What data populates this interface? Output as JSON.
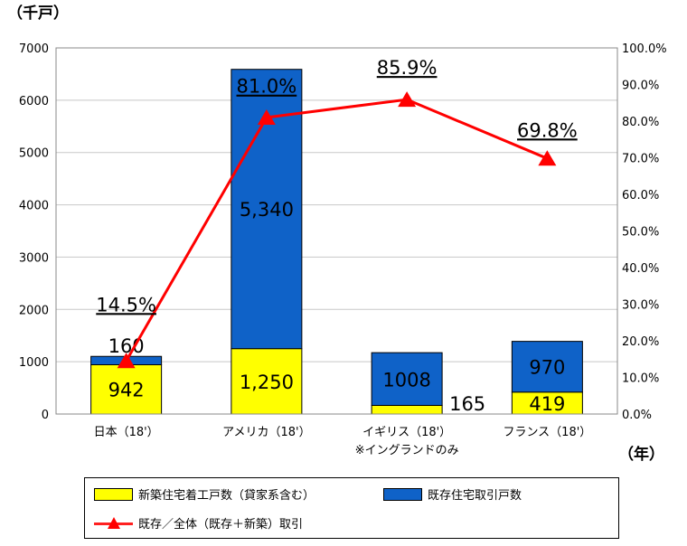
{
  "chart_data": {
    "type": "bar",
    "stacked": true,
    "y_unit_label": "（千戸）",
    "x_unit_label": "（年）",
    "categories": [
      "日本（18'）",
      "アメリカ（18'）",
      "イギリス（18'）",
      "フランス（18'）"
    ],
    "category_notes": [
      "",
      "",
      "※イングランドのみ",
      ""
    ],
    "series": [
      {
        "name": "新築住宅着工戸数（貸家系含む）",
        "values": [
          942,
          1250,
          165,
          419
        ],
        "labels": [
          "942",
          "1,250",
          "165",
          "419"
        ],
        "color": "#ffff00"
      },
      {
        "name": "既存住宅取引戸数",
        "values": [
          160,
          5340,
          1008,
          970
        ],
        "labels": [
          "160",
          "5,340",
          "1008",
          "970"
        ],
        "color": "#0f62c8"
      }
    ],
    "line_series": {
      "name": "既存／全体（既存＋新築）取引",
      "values": [
        14.5,
        81.0,
        85.9,
        69.8
      ],
      "labels": [
        "14.5%",
        "81.0%",
        "85.9%",
        "69.8%"
      ],
      "color": "#ff0000",
      "marker": "triangle"
    },
    "y_left": {
      "min": 0,
      "max": 7000,
      "ticks": [
        "0",
        "1000",
        "2000",
        "3000",
        "4000",
        "5000",
        "6000",
        "7000"
      ]
    },
    "y_right": {
      "min": 0,
      "max": 100,
      "ticks": [
        "0.0%",
        "10.0%",
        "20.0%",
        "30.0%",
        "40.0%",
        "50.0%",
        "60.0%",
        "70.0%",
        "80.0%",
        "90.0%",
        "100.0%"
      ]
    },
    "grid": true,
    "legend_position": "bottom"
  }
}
